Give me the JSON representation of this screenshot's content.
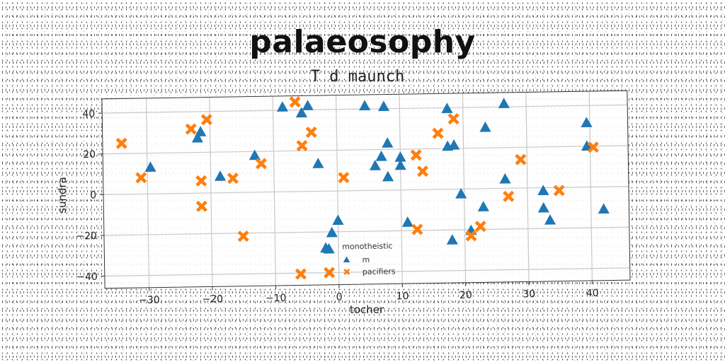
{
  "chart_data": {
    "type": "scatter",
    "title": "palaeosophy",
    "subtitle": "T d maunch",
    "xlabel": "tocher",
    "ylabel": "sundra",
    "xlim": [
      -37,
      46
    ],
    "ylim": [
      -46,
      47
    ],
    "xticks": [
      -30,
      -20,
      -10,
      0,
      10,
      20,
      30,
      40
    ],
    "yticks": [
      -40,
      -20,
      0,
      20,
      40
    ],
    "grid": true,
    "legend": {
      "title": "monotheistic",
      "placement": "lower-center"
    },
    "series": [
      {
        "name": "m",
        "marker": "triangle",
        "color": "#1f77b4",
        "points": [
          [
            -29.5,
            13
          ],
          [
            -22,
            27
          ],
          [
            -21.5,
            30
          ],
          [
            -18.5,
            8
          ],
          [
            -13,
            18
          ],
          [
            -8.5,
            41.5
          ],
          [
            -5.5,
            38.5
          ],
          [
            -4.5,
            42
          ],
          [
            -3,
            13.5
          ],
          [
            -2,
            -28
          ],
          [
            -1,
            -20.5
          ],
          [
            0,
            -14.5
          ],
          [
            -1.5,
            -28.5
          ],
          [
            4.5,
            41.5
          ],
          [
            6,
            12
          ],
          [
            7,
            16.5
          ],
          [
            7.5,
            41
          ],
          [
            8,
            23
          ],
          [
            8,
            6.5
          ],
          [
            10,
            16
          ],
          [
            10,
            12
          ],
          [
            11,
            -16
          ],
          [
            17.5,
            39.5
          ],
          [
            17.5,
            21
          ],
          [
            18.5,
            21.5
          ],
          [
            19.5,
            -2.5
          ],
          [
            18,
            -25
          ],
          [
            21,
            -20.5
          ],
          [
            23,
            -9
          ],
          [
            23.5,
            30
          ],
          [
            26.5,
            41.5
          ],
          [
            26.5,
            4.5
          ],
          [
            32.5,
            -1.5
          ],
          [
            32.5,
            -10
          ],
          [
            33.5,
            -16
          ],
          [
            39.5,
            31.5
          ],
          [
            39.5,
            20
          ],
          [
            42,
            -11
          ]
        ]
      },
      {
        "name": "pacifiers",
        "marker": "x",
        "color": "#ff7f0e",
        "points": [
          [
            -34,
            25
          ],
          [
            -31,
            8
          ],
          [
            -23,
            31.5
          ],
          [
            -21.5,
            6
          ],
          [
            -21.5,
            -6.5
          ],
          [
            -20.5,
            36
          ],
          [
            -16.5,
            7
          ],
          [
            -12,
            14
          ],
          [
            -15,
            -21.5
          ],
          [
            -6.5,
            44
          ],
          [
            -5.5,
            22.5
          ],
          [
            -4,
            29
          ],
          [
            -6,
            -40.5
          ],
          [
            -1.5,
            -40
          ],
          [
            1,
            6.5
          ],
          [
            12.5,
            17
          ],
          [
            12.5,
            -19.5
          ],
          [
            13.5,
            9
          ],
          [
            16,
            27.5
          ],
          [
            18.5,
            34.5
          ],
          [
            21,
            -23
          ],
          [
            22.5,
            -18.5
          ],
          [
            27,
            -4
          ],
          [
            29,
            14
          ],
          [
            35,
            -1.5
          ],
          [
            40.5,
            19.5
          ]
        ]
      }
    ]
  }
}
